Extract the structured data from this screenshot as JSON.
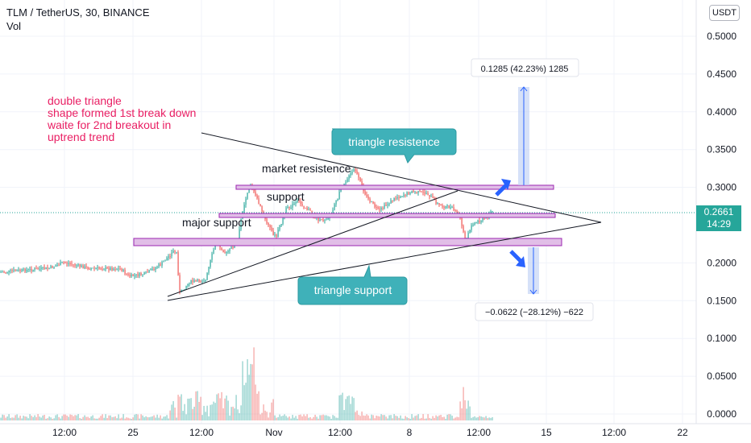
{
  "header": {
    "symbol": "TLM / TetherUS, 30, BINANCE",
    "volume_label": "Vol"
  },
  "currency_button": "USDT",
  "last_price": {
    "value": "0.2661",
    "countdown": "14:29"
  },
  "price_axis": [
    "0.5000",
    "0.4500",
    "0.4000",
    "0.3500",
    "0.3000",
    "0.2000",
    "0.1500",
    "0.1000",
    "0.0500",
    "0.0000"
  ],
  "time_axis": [
    "12:00",
    "25",
    "12:00",
    "Nov",
    "12:00",
    "8",
    "12:00",
    "15",
    "12:00",
    "22"
  ],
  "annotations": {
    "note": [
      "double triangle",
      "shape formed 1st break down",
      "waite for 2nd breakout in",
      "uptrend trend"
    ],
    "triangle_resistance": "triangle resistence",
    "triangle_support": "triangle support",
    "market_resistance": "market resistence",
    "support": "support",
    "major_support": "major support",
    "upper_measure": "0.1285 (42.23%) 1285",
    "lower_measure": "−0.0622 (−28.12%) −622"
  },
  "colors": {
    "up": "#26a69a",
    "down": "#ef5350",
    "note": "#e91e63",
    "callout": "#3fb1b9",
    "zone_border": "#9c27b0",
    "zone_fill": "#e1bee7",
    "arrow": "#2962ff",
    "measure_fill": "#c5d4f5"
  }
}
